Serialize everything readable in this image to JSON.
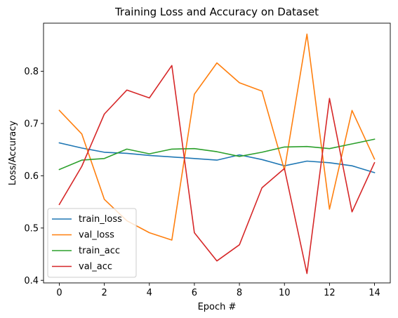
{
  "chart_data": {
    "type": "line",
    "title": "Training Loss and Accuracy on Dataset",
    "xlabel": "Epoch #",
    "ylabel": "Loss/Accuracy",
    "x": [
      0,
      1,
      2,
      3,
      4,
      5,
      6,
      7,
      8,
      9,
      10,
      11,
      12,
      13,
      14
    ],
    "xlim": [
      -0.7,
      14.7
    ],
    "ylim": [
      0.395,
      0.892
    ],
    "xticks": [
      0,
      2,
      4,
      6,
      8,
      10,
      12,
      14
    ],
    "yticks": [
      0.4,
      0.5,
      0.6,
      0.7,
      0.8
    ],
    "grid": false,
    "legend_position": "lower-left",
    "series": [
      {
        "name": "train_loss",
        "color": "#1f77b4",
        "values": [
          0.663,
          0.653,
          0.645,
          0.643,
          0.639,
          0.636,
          0.633,
          0.63,
          0.64,
          0.631,
          0.619,
          0.628,
          0.625,
          0.619,
          0.606
        ]
      },
      {
        "name": "val_loss",
        "color": "#ff7f0e",
        "values": [
          0.725,
          0.68,
          0.555,
          0.514,
          0.491,
          0.477,
          0.756,
          0.816,
          0.778,
          0.762,
          0.611,
          0.871,
          0.536,
          0.725,
          0.632
        ]
      },
      {
        "name": "train_acc",
        "color": "#2ca02c",
        "values": [
          0.612,
          0.63,
          0.633,
          0.651,
          0.642,
          0.651,
          0.652,
          0.646,
          0.637,
          0.645,
          0.655,
          0.656,
          0.652,
          0.661,
          0.67
        ]
      },
      {
        "name": "val_acc",
        "color": "#d62728",
        "values": [
          0.545,
          0.618,
          0.718,
          0.764,
          0.749,
          0.811,
          0.491,
          0.437,
          0.468,
          0.577,
          0.614,
          0.413,
          0.748,
          0.531,
          0.625
        ]
      }
    ]
  }
}
